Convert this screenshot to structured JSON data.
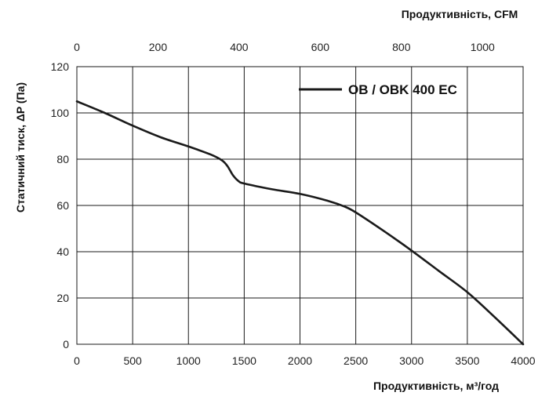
{
  "chart_data": {
    "type": "line",
    "xlabel": "Продуктивність, м³/год",
    "ylabel": "Статичний тиск, ΔP (Па)",
    "x2label": "Продуктивність, CFM",
    "xlim": [
      0,
      4000
    ],
    "ylim": [
      0,
      120
    ],
    "x2lim": [
      0,
      1100
    ],
    "x_ticks": [
      0,
      500,
      1000,
      1500,
      2000,
      2500,
      3000,
      3500,
      4000
    ],
    "y_ticks": [
      0,
      20,
      40,
      60,
      80,
      100,
      120
    ],
    "x2_ticks": [
      0,
      200,
      400,
      600,
      800,
      1000
    ],
    "grid": true,
    "legend_position": "top-right",
    "series": [
      {
        "name": "OB / OBK 400 EC",
        "color": "#1a1a1a",
        "x": [
          0,
          250,
          500,
          750,
          1000,
          1200,
          1300,
          1350,
          1400,
          1450,
          1500,
          1750,
          2000,
          2250,
          2400,
          2500,
          2750,
          3000,
          3250,
          3500,
          3750,
          4000
        ],
        "y": [
          105,
          100,
          94.5,
          89.5,
          85.5,
          82,
          79.5,
          77,
          73,
          70.5,
          69.5,
          67,
          65,
          62,
          59.5,
          57,
          49,
          40.5,
          31.5,
          22.5,
          11.5,
          0
        ]
      }
    ]
  }
}
